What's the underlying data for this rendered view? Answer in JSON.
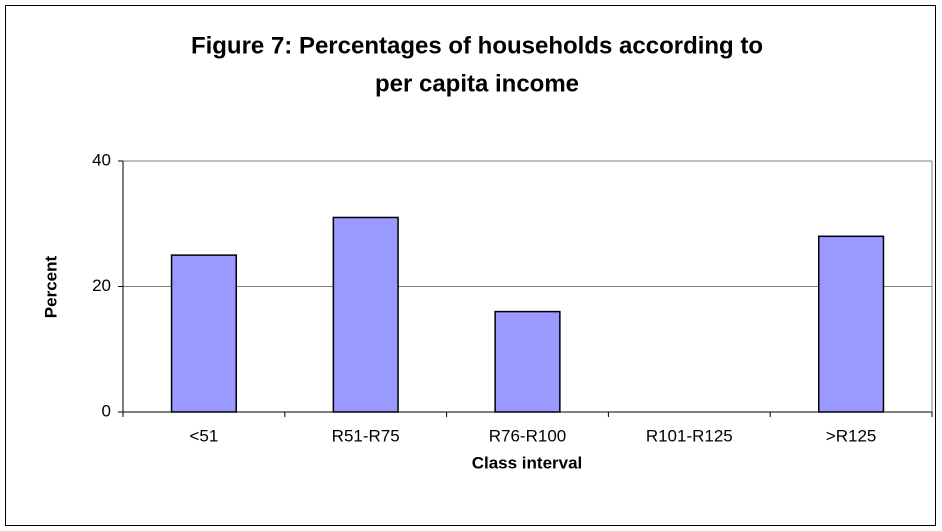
{
  "chart_data": {
    "type": "bar",
    "title": [
      "Figure 7: Percentages of households according to",
      "per capita income"
    ],
    "x_label": "Class interval",
    "y_label": "Percent",
    "categories": [
      "<51",
      "R51-R75",
      "R76-R100",
      "R101-R125",
      ">R125"
    ],
    "values": [
      25,
      31,
      16,
      0,
      28
    ],
    "color": "#9999ff",
    "ylim": [
      0,
      40
    ],
    "yticks": [
      0,
      20,
      40
    ],
    "grid": true
  }
}
